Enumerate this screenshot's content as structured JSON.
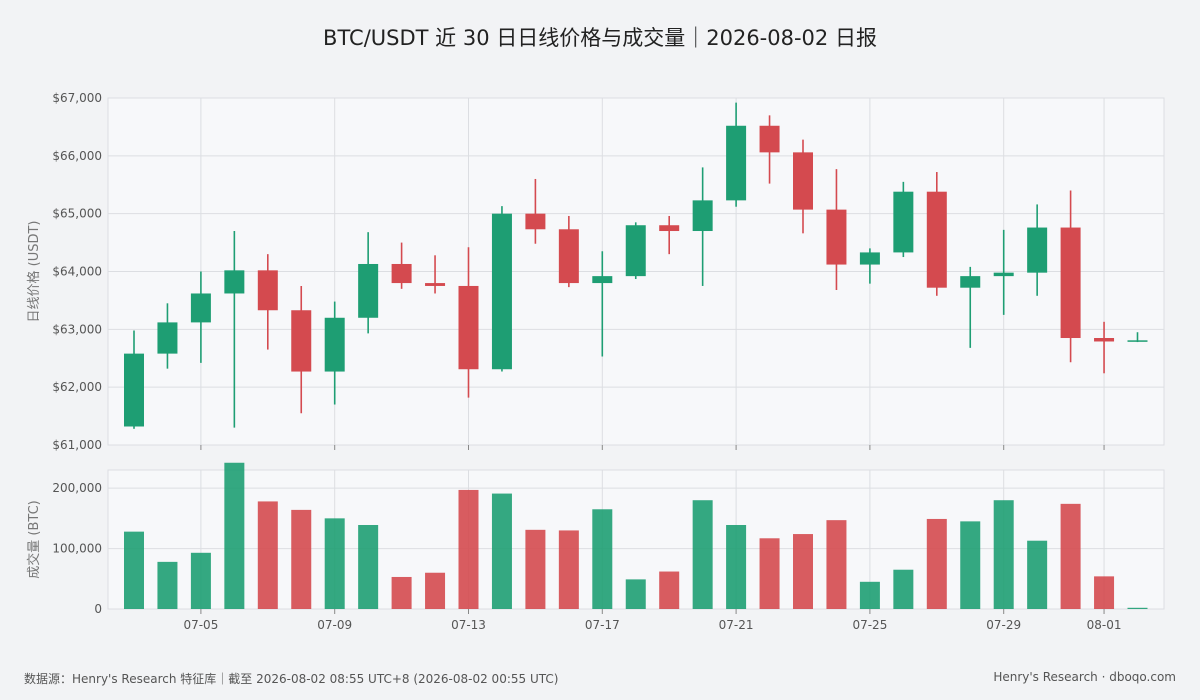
{
  "title": "BTC/USDT 近 30 日日线价格与成交量｜2026-08-02 日报",
  "footer": {
    "source": "数据源：Henry's Research 特征库｜截至 2026-08-02 08:55 UTC+8 (2026-08-02 00:55 UTC)",
    "brand": "Henry's Research · dboqo.com"
  },
  "colors": {
    "up": "#1e9e73",
    "down": "#d44a4f",
    "grid": "#dcdee2",
    "panel": "#f7f8fa"
  },
  "chart_data": [
    {
      "type": "candlestick",
      "ylabel": "日线价格 (USDT)",
      "ylim": [
        61000,
        67000
      ],
      "yticks": [
        61000,
        62000,
        63000,
        64000,
        65000,
        66000,
        67000
      ],
      "ytick_labels": [
        "$61,000",
        "$62,000",
        "$63,000",
        "$64,000",
        "$65,000",
        "$66,000",
        "$67,000"
      ],
      "grid": true,
      "dates": [
        "07-03",
        "07-04",
        "07-05",
        "07-06",
        "07-07",
        "07-08",
        "07-09",
        "07-10",
        "07-11",
        "07-12",
        "07-13",
        "07-14",
        "07-15",
        "07-16",
        "07-17",
        "07-18",
        "07-19",
        "07-20",
        "07-21",
        "07-22",
        "07-23",
        "07-24",
        "07-25",
        "07-26",
        "07-27",
        "07-28",
        "07-29",
        "07-30",
        "07-31",
        "08-01",
        "08-02"
      ],
      "ohlc": [
        [
          61320,
          62980,
          61280,
          62580
        ],
        [
          62580,
          63450,
          62320,
          63120
        ],
        [
          63120,
          64000,
          62420,
          63620
        ],
        [
          63620,
          64700,
          61300,
          64020
        ],
        [
          64020,
          64300,
          62650,
          63330
        ],
        [
          63330,
          63750,
          61550,
          62270
        ],
        [
          62270,
          63480,
          61700,
          63200
        ],
        [
          63200,
          64680,
          62930,
          64130
        ],
        [
          64130,
          64500,
          63700,
          63800
        ],
        [
          63800,
          64280,
          63620,
          63750
        ],
        [
          63750,
          64420,
          61820,
          62310
        ],
        [
          62310,
          65130,
          62270,
          65000
        ],
        [
          65000,
          65600,
          64480,
          64730
        ],
        [
          64730,
          64960,
          63730,
          63800
        ],
        [
          63800,
          64350,
          62530,
          63920
        ],
        [
          63920,
          64850,
          63870,
          64800
        ],
        [
          64800,
          64960,
          64300,
          64700
        ],
        [
          64700,
          65800,
          63750,
          65230
        ],
        [
          65230,
          66920,
          65120,
          66520
        ],
        [
          66520,
          66700,
          65520,
          66060
        ],
        [
          66060,
          66280,
          64660,
          65070
        ],
        [
          65070,
          65770,
          63680,
          64120
        ],
        [
          64120,
          64400,
          63790,
          64330
        ],
        [
          64330,
          65550,
          64250,
          65380
        ],
        [
          65380,
          65720,
          63580,
          63720
        ],
        [
          63720,
          64080,
          62680,
          63920
        ],
        [
          63920,
          64720,
          63250,
          63980
        ],
        [
          63980,
          65160,
          63580,
          64760
        ],
        [
          64760,
          65400,
          62430,
          62850
        ],
        [
          62850,
          63130,
          62240,
          62790
        ],
        [
          62790,
          62950,
          62780,
          62810
        ]
      ],
      "xtick_labels": [
        "07-05",
        "07-09",
        "07-13",
        "07-17",
        "07-21",
        "07-25",
        "07-29",
        "08-01"
      ]
    },
    {
      "type": "bar",
      "ylabel": "成交量 (BTC)",
      "ylim": [
        0,
        230000
      ],
      "yticks": [
        0,
        100000,
        200000
      ],
      "ytick_labels": [
        "0",
        "100,000",
        "200,000"
      ],
      "grid": true,
      "values": [
        128000,
        78000,
        93000,
        242000,
        178000,
        164000,
        150000,
        139000,
        53000,
        60000,
        197000,
        191000,
        131000,
        130000,
        165000,
        49000,
        62000,
        180000,
        139000,
        117000,
        124000,
        147000,
        45000,
        65000,
        149000,
        145000,
        180000,
        113000,
        174000,
        54000,
        2000
      ],
      "xtick_labels": [
        "07-05",
        "07-09",
        "07-13",
        "07-17",
        "07-21",
        "07-25",
        "07-29",
        "08-01"
      ]
    }
  ]
}
